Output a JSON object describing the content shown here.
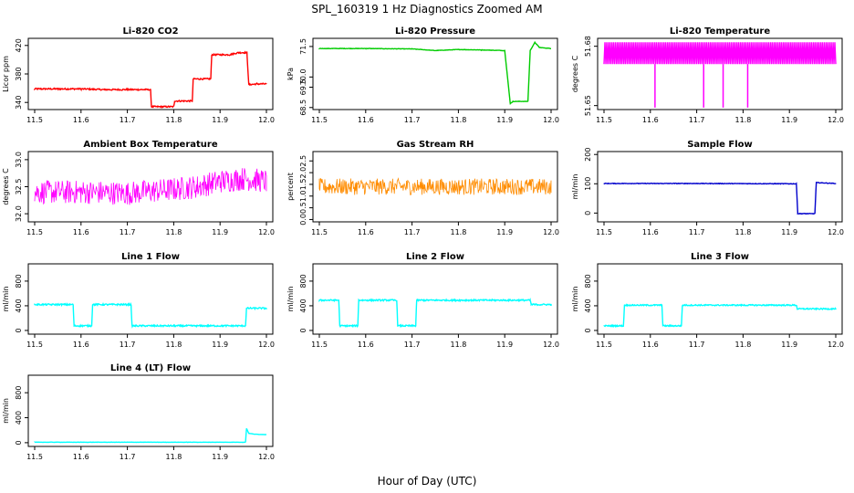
{
  "figure": {
    "title": "SPL_160319  1 Hz Diagnostics Zoomed AM",
    "xlabel": "Hour of Day (UTC)"
  },
  "chart_data": [
    {
      "type": "line",
      "title": "Li-820 CO2",
      "ylabel": "Licor ppm",
      "color": "#ff0000",
      "xlim": [
        11.5,
        12.0
      ],
      "ylim": [
        330,
        430
      ],
      "xticks": [
        "11.5",
        "11.6",
        "11.7",
        "11.8",
        "11.9",
        "12.0"
      ],
      "yticks": [
        340,
        380,
        420
      ],
      "x": [
        11.5,
        11.55,
        11.6,
        11.65,
        11.7,
        11.75,
        11.752,
        11.8,
        11.802,
        11.84,
        11.842,
        11.88,
        11.882,
        11.92,
        11.94,
        11.958,
        11.962,
        11.98,
        12.0
      ],
      "y": [
        359,
        359,
        359,
        358,
        358,
        358,
        334,
        334,
        342,
        342,
        373,
        373,
        407,
        407,
        410,
        410,
        365,
        366,
        366
      ],
      "noise": 1
    },
    {
      "type": "line",
      "title": "Li-820 Pressure",
      "ylabel": "kPa",
      "color": "#00cc00",
      "xlim": [
        11.5,
        12.0
      ],
      "ylim": [
        68.4,
        71.9
      ],
      "xticks": [
        "11.5",
        "11.6",
        "11.7",
        "11.8",
        "11.9",
        "12.0"
      ],
      "yticks": [
        68.5,
        69.5,
        70.0,
        71.5
      ],
      "ytick_labels": [
        "68.5",
        "69.5",
        "70.0",
        "71.5"
      ],
      "x": [
        11.5,
        11.6,
        11.7,
        11.75,
        11.8,
        11.85,
        11.9,
        11.912,
        11.918,
        11.95,
        11.955,
        11.965,
        11.975,
        12.0
      ],
      "y": [
        71.4,
        71.4,
        71.38,
        71.3,
        71.35,
        71.33,
        71.3,
        68.7,
        68.8,
        68.8,
        71.3,
        71.7,
        71.45,
        71.4
      ],
      "noise": 0.01
    },
    {
      "type": "line",
      "title": "Li-820 Temperature",
      "ylabel": "degrees C",
      "color": "#ff00ff",
      "xlim": [
        11.5,
        12.0
      ],
      "ylim": [
        51.648,
        51.684
      ],
      "xticks": [
        "11.5",
        "11.6",
        "11.7",
        "11.8",
        "11.9",
        "12.0"
      ],
      "yticks": [
        51.65,
        51.68
      ],
      "ytick_labels": [
        "51.65",
        "51.68"
      ],
      "levels": [
        51.671,
        51.682
      ],
      "dips": [
        {
          "x": 11.61,
          "y": 51.649
        },
        {
          "x": 11.715,
          "y": 51.649
        },
        {
          "x": 11.757,
          "y": 51.649
        },
        {
          "x": 11.81,
          "y": 51.649
        }
      ]
    },
    {
      "type": "line",
      "title": "Ambient Box Temperature",
      "ylabel": "degrees C",
      "color": "#ff00ff",
      "xlim": [
        11.5,
        12.0
      ],
      "ylim": [
        31.85,
        33.15
      ],
      "xticks": [
        "11.5",
        "11.6",
        "11.7",
        "11.8",
        "11.9",
        "12.0"
      ],
      "yticks": [
        32.0,
        32.5,
        33.0
      ],
      "ytick_labels": [
        "32.0",
        "32.5",
        "33.0"
      ],
      "x": [
        11.5,
        11.6,
        11.7,
        11.8,
        11.85,
        11.9,
        11.95,
        12.0
      ],
      "y": [
        32.4,
        32.4,
        32.38,
        32.45,
        32.5,
        32.6,
        32.65,
        32.6
      ],
      "noise": 0.22
    },
    {
      "type": "line",
      "title": "Gas Stream RH",
      "ylabel": "percent",
      "color": "#ff8c00",
      "xlim": [
        11.5,
        12.0
      ],
      "ylim": [
        -0.1,
        2.9
      ],
      "xticks": [
        "11.5",
        "11.6",
        "11.7",
        "11.8",
        "11.9",
        "12.0"
      ],
      "yticks": [
        0.0,
        0.5,
        1.0,
        1.5,
        2.0,
        2.5
      ],
      "ytick_labels": [
        "0.0",
        "0.5",
        "1.0",
        "1.5",
        "2.0",
        "2.5"
      ],
      "x": [
        11.5,
        12.0
      ],
      "y": [
        1.4,
        1.4
      ],
      "noise": 0.35
    },
    {
      "type": "line",
      "title": "Sample Flow",
      "ylabel": "ml/min",
      "color": "#0000cc",
      "xlim": [
        11.5,
        12.0
      ],
      "ylim": [
        -30,
        210
      ],
      "xticks": [
        "11.5",
        "11.6",
        "11.7",
        "11.8",
        "11.9",
        "12.0"
      ],
      "yticks": [
        0,
        100,
        200
      ],
      "x": [
        11.5,
        11.7,
        11.9,
        11.915,
        11.918,
        11.955,
        11.958,
        12.0
      ],
      "y": [
        101,
        101,
        100,
        100,
        -2,
        -2,
        104,
        101
      ],
      "noise": 1
    },
    {
      "type": "line",
      "title": "Line 1 Flow",
      "ylabel": "ml/min",
      "color": "#00ffff",
      "xlim": [
        11.5,
        12.0
      ],
      "ylim": [
        -60,
        1080
      ],
      "xticks": [
        "11.5",
        "11.6",
        "11.7",
        "11.8",
        "11.9",
        "12.0"
      ],
      "yticks": [
        0,
        400,
        800
      ],
      "x": [
        11.5,
        11.583,
        11.585,
        11.623,
        11.625,
        11.708,
        11.71,
        11.955,
        11.957,
        12.0
      ],
      "y": [
        420,
        420,
        75,
        75,
        420,
        420,
        75,
        75,
        360,
        360
      ],
      "noise": 12
    },
    {
      "type": "line",
      "title": "Line 2 Flow",
      "ylabel": "ml/min",
      "color": "#00ffff",
      "xlim": [
        11.5,
        12.0
      ],
      "ylim": [
        -60,
        1080
      ],
      "xticks": [
        "11.5",
        "11.6",
        "11.7",
        "11.8",
        "11.9",
        "12.0"
      ],
      "yticks": [
        0,
        400,
        800
      ],
      "x": [
        11.5,
        11.542,
        11.544,
        11.583,
        11.585,
        11.667,
        11.669,
        11.708,
        11.71,
        11.955,
        11.957,
        12.0
      ],
      "y": [
        490,
        490,
        75,
        75,
        490,
        490,
        75,
        75,
        490,
        490,
        420,
        420
      ],
      "noise": 12
    },
    {
      "type": "line",
      "title": "Line 3 Flow",
      "ylabel": "ml/min",
      "color": "#00ffff",
      "xlim": [
        11.5,
        12.0
      ],
      "ylim": [
        -60,
        1080
      ],
      "xticks": [
        "11.5",
        "11.6",
        "11.7",
        "11.8",
        "11.9",
        "12.0"
      ],
      "yticks": [
        0,
        400,
        800
      ],
      "x": [
        11.5,
        11.542,
        11.544,
        11.625,
        11.627,
        11.667,
        11.669,
        11.915,
        11.917,
        12.0
      ],
      "y": [
        75,
        75,
        410,
        410,
        75,
        75,
        410,
        410,
        350,
        350
      ],
      "noise": 10
    },
    {
      "type": "line",
      "title": "Line 4 (LT) Flow",
      "ylabel": "ml/min",
      "color": "#00ffff",
      "xlim": [
        11.5,
        12.0
      ],
      "ylim": [
        -60,
        1080
      ],
      "xticks": [
        "11.5",
        "11.6",
        "11.7",
        "11.8",
        "11.9",
        "12.0"
      ],
      "yticks": [
        0,
        400,
        800
      ],
      "x": [
        11.5,
        11.955,
        11.957,
        11.962,
        11.975,
        12.0
      ],
      "y": [
        8,
        8,
        230,
        150,
        135,
        130
      ],
      "noise": 2
    }
  ]
}
